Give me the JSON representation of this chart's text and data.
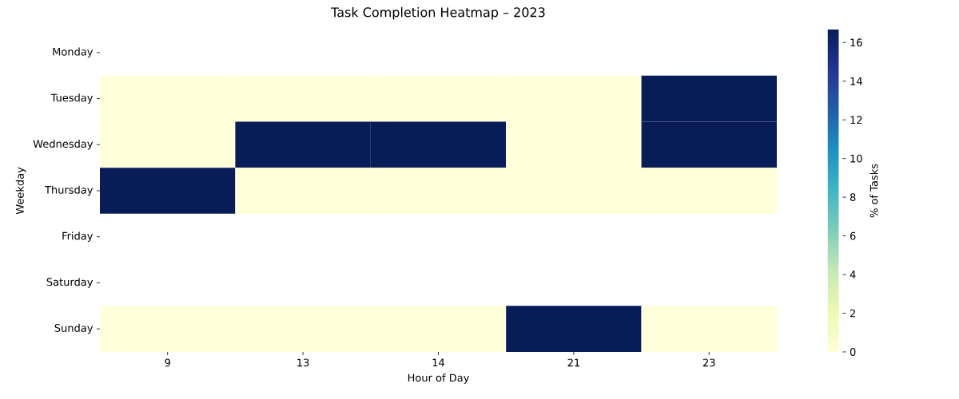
{
  "chart_data": {
    "type": "heatmap",
    "title": "Task Completion Heatmap – 2023",
    "xlabel": "Hour of Day",
    "ylabel": "Weekday",
    "clabel": "% of Tasks",
    "categories": [
      "9",
      "13",
      "14",
      "21",
      "23"
    ],
    "y_categories": [
      "Monday",
      "Tuesday",
      "Wednesday",
      "Thursday",
      "Friday",
      "Saturday",
      "Sunday"
    ],
    "cells": [
      [
        null,
        null,
        null,
        null,
        null
      ],
      [
        0,
        0,
        0,
        0,
        16.67
      ],
      [
        0,
        16.67,
        16.67,
        0,
        16.67
      ],
      [
        16.67,
        0,
        0,
        0,
        0
      ],
      [
        null,
        null,
        null,
        null,
        null
      ],
      [
        null,
        null,
        null,
        null,
        null
      ],
      [
        0,
        0,
        0,
        16.67,
        0
      ]
    ],
    "clim": [
      0,
      16.67
    ],
    "cticks": [
      0,
      2,
      4,
      6,
      8,
      10,
      12,
      14,
      16
    ]
  }
}
